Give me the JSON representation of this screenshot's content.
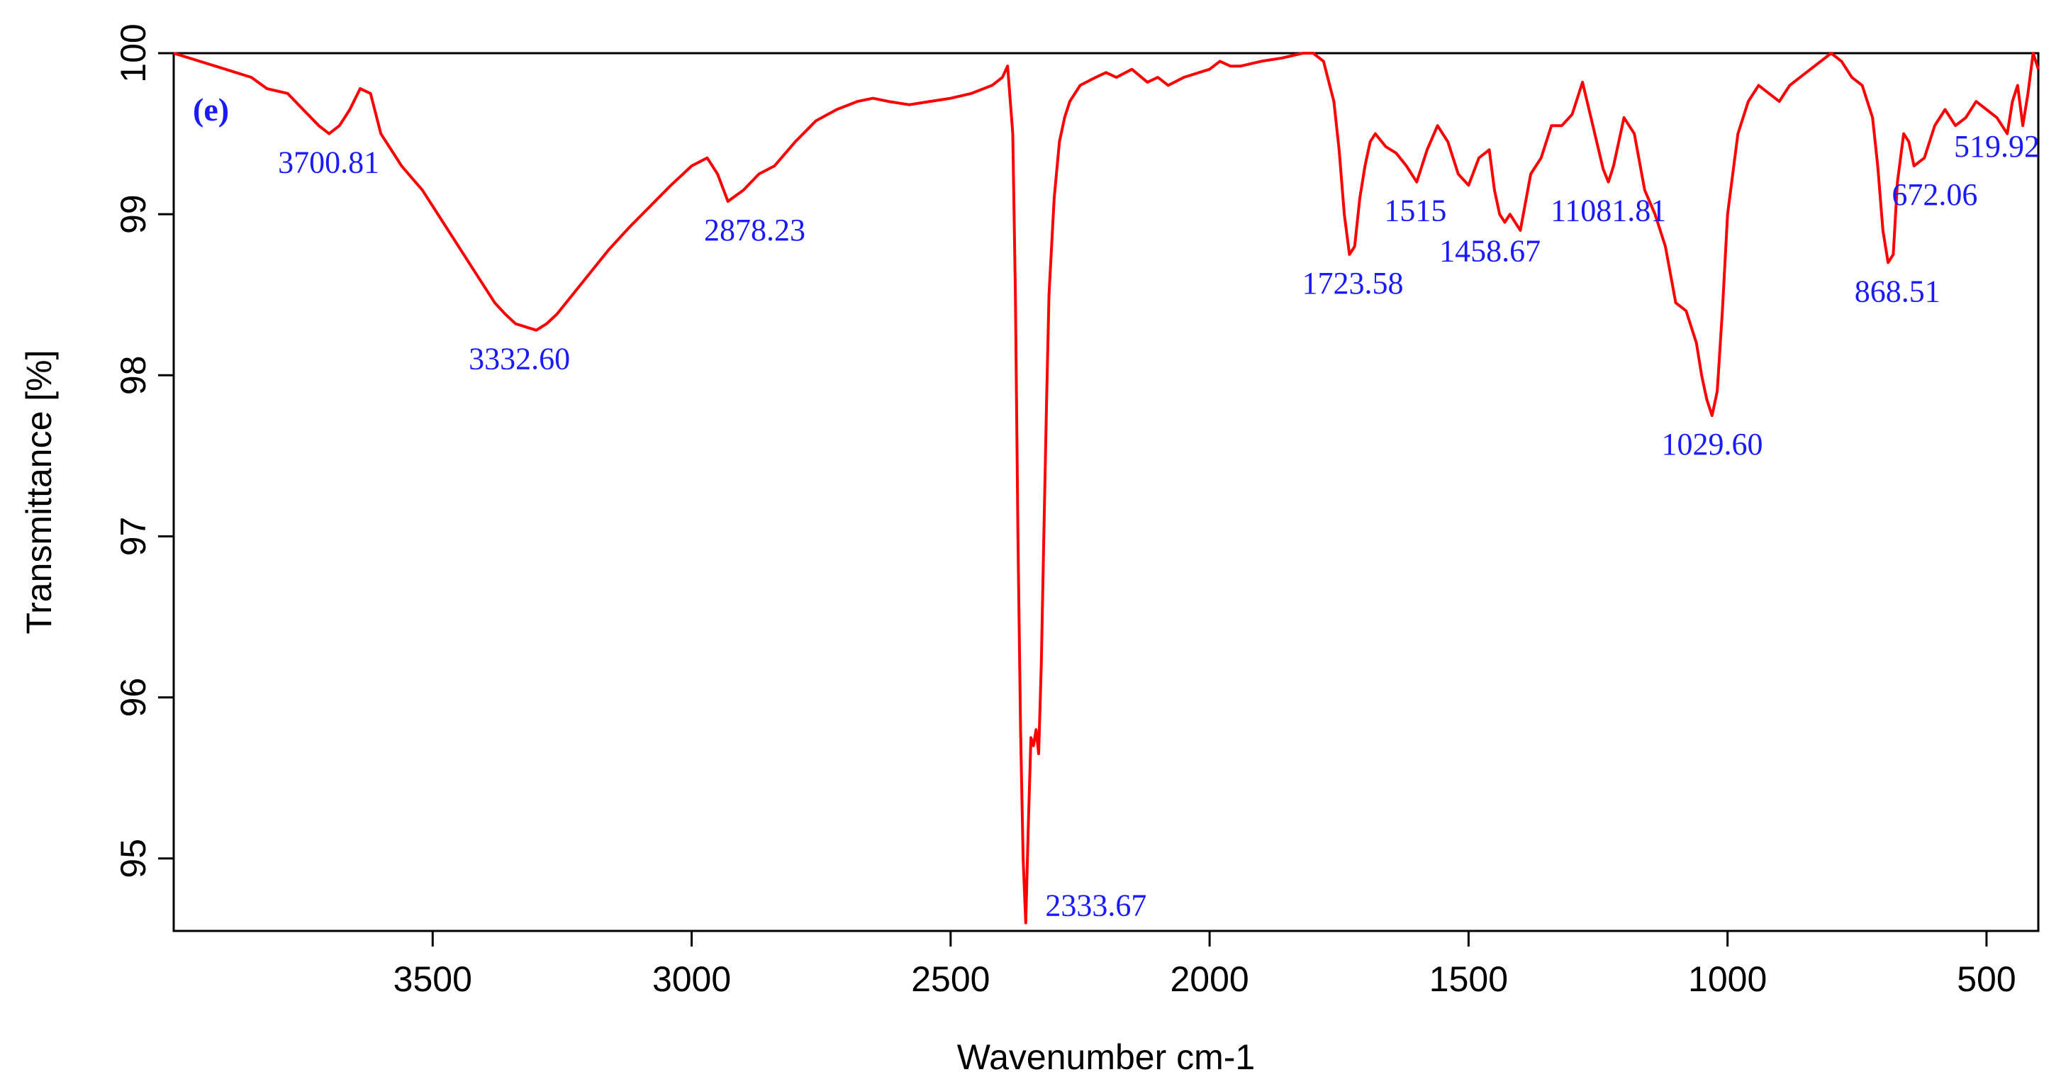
{
  "chart_data": {
    "type": "line",
    "title": "",
    "panel_tag": "(e)",
    "xlabel": "Wavenumber cm-1",
    "ylabel": "Transmittance [%]",
    "xlim": [
      4000,
      400
    ],
    "ylim": [
      94.55,
      100.0
    ],
    "x_ticks": [
      3500,
      3000,
      2500,
      2000,
      1500,
      1000,
      500
    ],
    "y_ticks": [
      95,
      96,
      97,
      98,
      99,
      100
    ],
    "grid": false,
    "colors": {
      "line": "#ff0000",
      "labels": "#1a1aff",
      "axes": "#000000"
    },
    "series": [
      {
        "x": [
          4000,
          3950,
          3900,
          3850,
          3820,
          3780,
          3750,
          3720,
          3700,
          3680,
          3660,
          3640,
          3620,
          3600,
          3560,
          3520,
          3480,
          3450,
          3420,
          3400,
          3380,
          3360,
          3340,
          3320,
          3300,
          3280,
          3260,
          3230,
          3200,
          3160,
          3120,
          3080,
          3040,
          3000,
          2970,
          2950,
          2930,
          2900,
          2870,
          2840,
          2800,
          2760,
          2720,
          2680,
          2650,
          2620,
          2580,
          2540,
          2500,
          2460,
          2420,
          2400,
          2390,
          2380,
          2375,
          2370,
          2365,
          2360,
          2355,
          2350,
          2345,
          2340,
          2335,
          2330,
          2325,
          2320,
          2315,
          2310,
          2300,
          2290,
          2280,
          2270,
          2260,
          2250,
          2220,
          2200,
          2180,
          2150,
          2120,
          2100,
          2080,
          2050,
          2000,
          1980,
          1960,
          1940,
          1900,
          1860,
          1820,
          1800,
          1780,
          1760,
          1750,
          1740,
          1730,
          1720,
          1710,
          1700,
          1690,
          1680,
          1660,
          1640,
          1620,
          1600,
          1580,
          1560,
          1540,
          1520,
          1500,
          1480,
          1460,
          1450,
          1440,
          1430,
          1420,
          1400,
          1380,
          1360,
          1340,
          1320,
          1300,
          1280,
          1260,
          1240,
          1230,
          1220,
          1200,
          1180,
          1160,
          1140,
          1120,
          1100,
          1080,
          1060,
          1050,
          1040,
          1030,
          1020,
          1010,
          1000,
          980,
          960,
          940,
          920,
          900,
          880,
          860,
          840,
          820,
          800,
          780,
          760,
          740,
          720,
          710,
          700,
          690,
          680,
          672,
          660,
          650,
          640,
          620,
          600,
          580,
          560,
          540,
          520,
          500,
          480,
          460,
          450,
          440,
          430,
          420,
          410,
          400
        ],
        "y": [
          100.0,
          99.95,
          99.9,
          99.85,
          99.78,
          99.75,
          99.65,
          99.55,
          99.5,
          99.55,
          99.65,
          99.78,
          99.75,
          99.5,
          99.3,
          99.15,
          98.95,
          98.8,
          98.65,
          98.55,
          98.45,
          98.38,
          98.32,
          98.3,
          98.28,
          98.32,
          98.38,
          98.5,
          98.62,
          98.78,
          98.92,
          99.05,
          99.18,
          99.3,
          99.35,
          99.25,
          99.08,
          99.15,
          99.25,
          99.3,
          99.45,
          99.58,
          99.65,
          99.7,
          99.72,
          99.7,
          99.68,
          99.7,
          99.72,
          99.75,
          99.8,
          99.85,
          99.92,
          99.5,
          98.5,
          97.0,
          95.8,
          95.0,
          94.6,
          95.2,
          95.75,
          95.7,
          95.8,
          95.65,
          96.2,
          97.0,
          97.8,
          98.5,
          99.1,
          99.45,
          99.6,
          99.7,
          99.75,
          99.8,
          99.85,
          99.88,
          99.85,
          99.9,
          99.82,
          99.85,
          99.8,
          99.85,
          99.9,
          99.95,
          99.92,
          99.92,
          99.95,
          99.97,
          100.0,
          100.0,
          99.95,
          99.7,
          99.4,
          99.0,
          98.75,
          98.8,
          99.1,
          99.3,
          99.45,
          99.5,
          99.42,
          99.38,
          99.3,
          99.2,
          99.4,
          99.55,
          99.45,
          99.25,
          99.18,
          99.35,
          99.4,
          99.15,
          99.0,
          98.95,
          99.0,
          98.9,
          99.25,
          99.35,
          99.55,
          99.55,
          99.62,
          99.82,
          99.55,
          99.28,
          99.2,
          99.3,
          99.6,
          99.5,
          99.15,
          99.0,
          98.8,
          98.45,
          98.4,
          98.2,
          98.0,
          97.85,
          97.75,
          97.9,
          98.4,
          99.0,
          99.5,
          99.7,
          99.8,
          99.75,
          99.7,
          99.8,
          99.85,
          99.9,
          99.95,
          100.0,
          99.95,
          99.85,
          99.8,
          99.6,
          99.3,
          98.9,
          98.7,
          98.75,
          99.2,
          99.5,
          99.45,
          99.3,
          99.35,
          99.55,
          99.65,
          99.55,
          99.6,
          99.7,
          99.65,
          99.6,
          99.5,
          99.7,
          99.8,
          99.55,
          99.75,
          100.0,
          99.9
        ]
      }
    ],
    "annotations": [
      {
        "text": "3700.81",
        "x": 3700.81,
        "y": 99.5,
        "anchor": "below"
      },
      {
        "text": "3332.60",
        "x": 3332.6,
        "y": 98.28,
        "anchor": "below"
      },
      {
        "text": "2878.23",
        "x": 2878.23,
        "y": 99.08,
        "anchor": "below"
      },
      {
        "text": "2333.67",
        "x": 2333.67,
        "y": 94.6,
        "anchor": "right"
      },
      {
        "text": "1723.58",
        "x": 1723.58,
        "y": 98.75,
        "anchor": "below"
      },
      {
        "text": "1515",
        "x": 1515,
        "y": 99.2,
        "anchor": "below-left"
      },
      {
        "text": "1458.67",
        "x": 1458.67,
        "y": 98.95,
        "anchor": "below"
      },
      {
        "text": "11081.81",
        "x": 1230,
        "y": 99.2,
        "anchor": "below"
      },
      {
        "text": "1029.60",
        "x": 1029.6,
        "y": 97.75,
        "anchor": "below"
      },
      {
        "text": "868.51",
        "x": 672,
        "y": 98.7,
        "anchor": "below"
      },
      {
        "text": "672.06",
        "x": 600,
        "y": 99.3,
        "anchor": "below"
      },
      {
        "text": "519.92",
        "x": 480,
        "y": 99.6,
        "anchor": "below"
      }
    ]
  }
}
